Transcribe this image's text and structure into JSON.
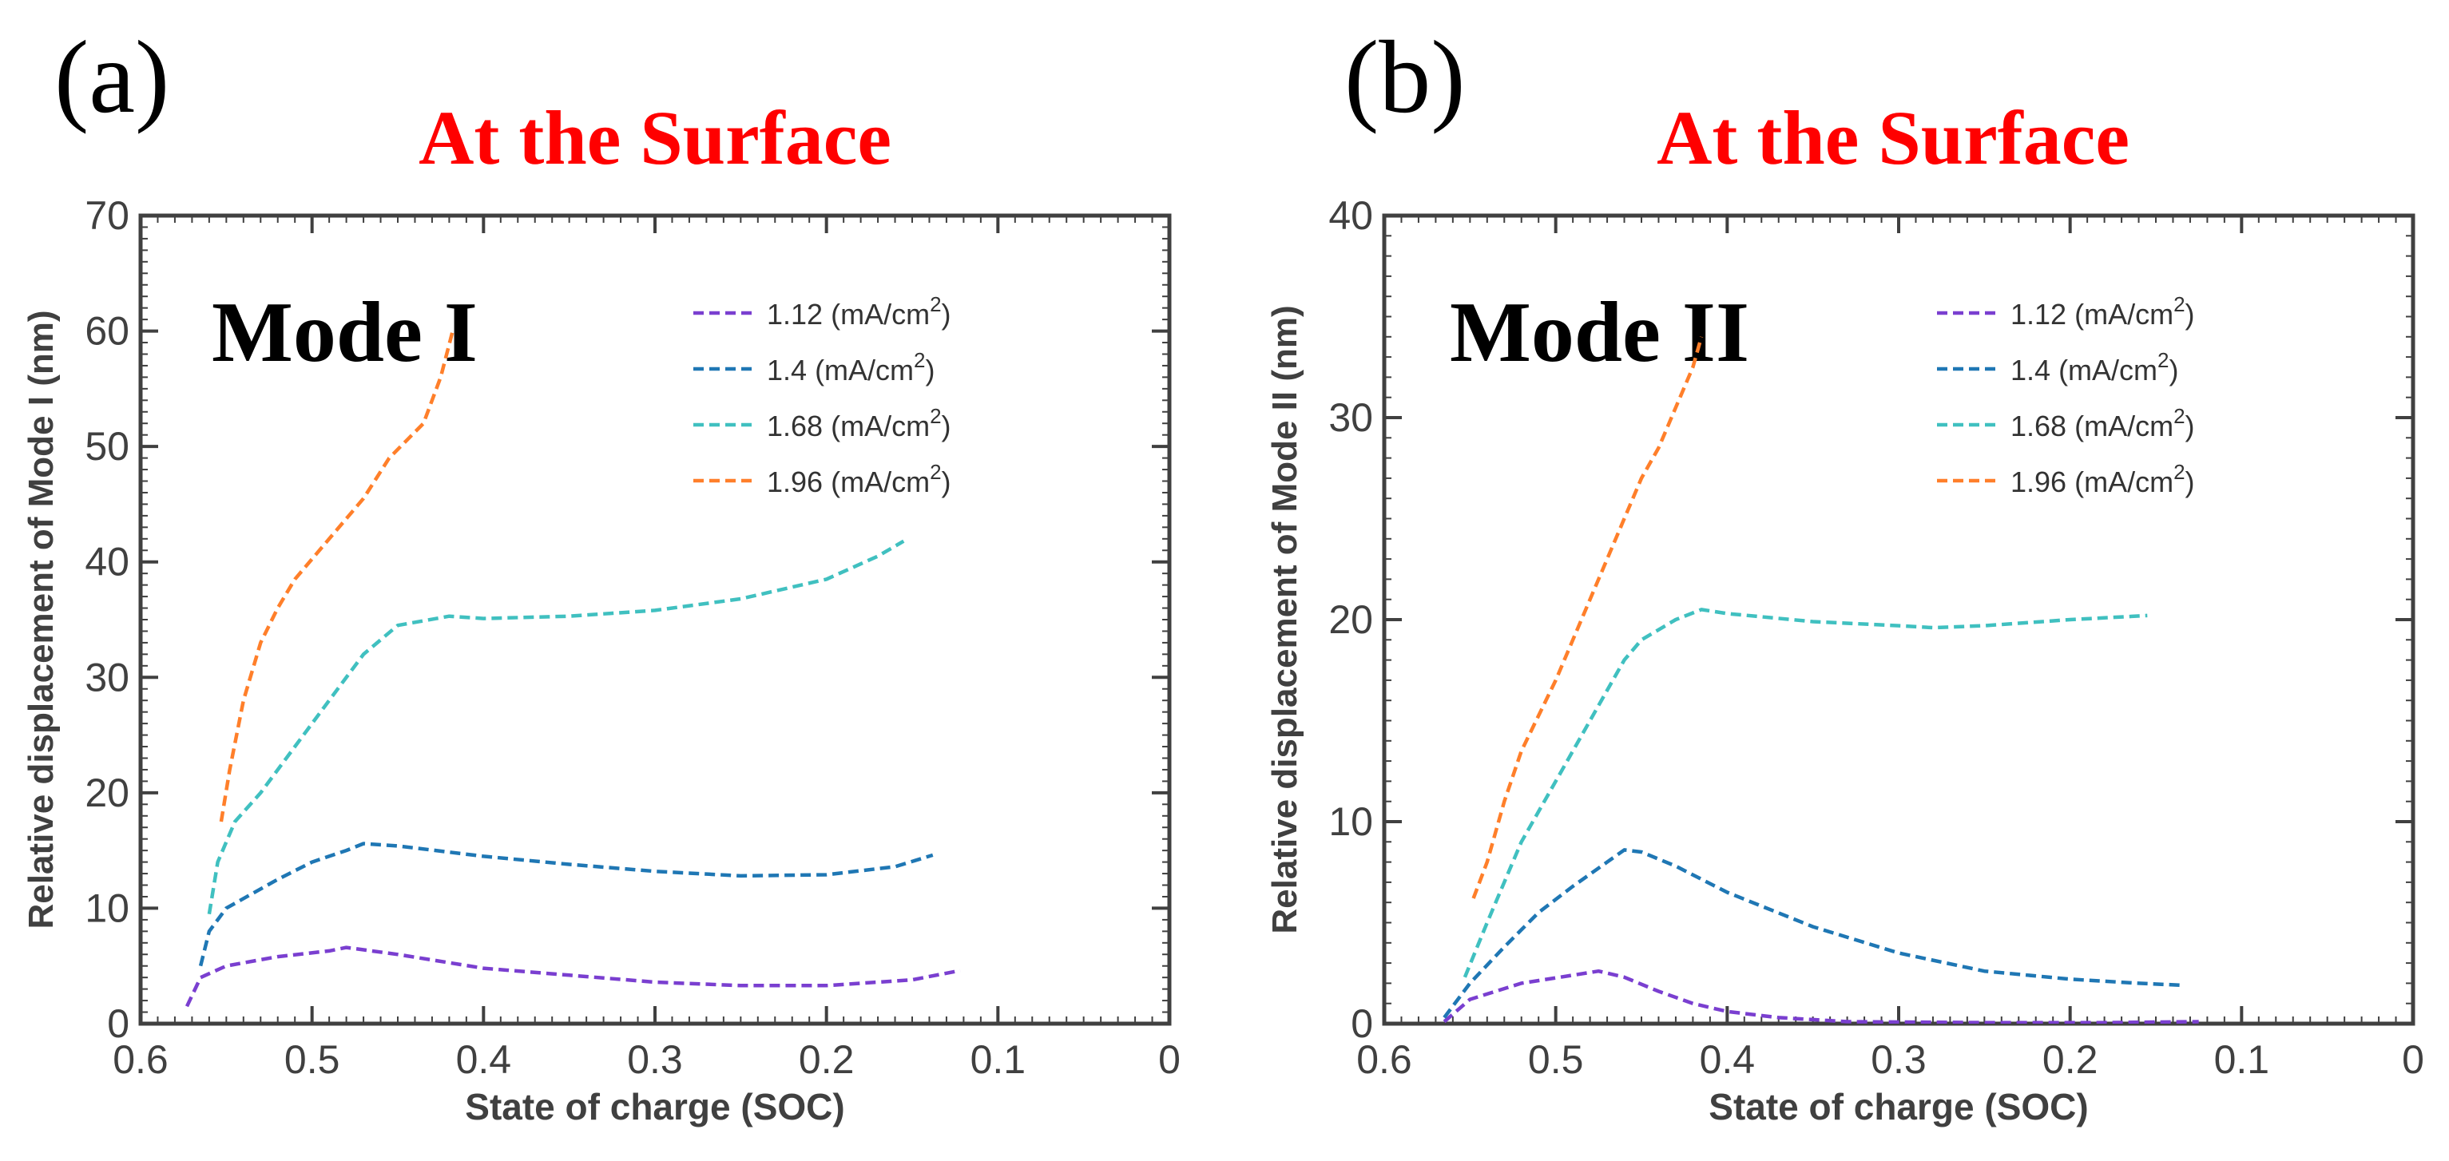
{
  "chart_data": [
    {
      "type": "line",
      "panel": "(a)",
      "title": "At  the Surface",
      "annotation": "Mode I",
      "xlabel": "State of charge (SOC)",
      "ylabel": "Relative displacement of Mode I (nm)",
      "xlim": [
        0.6,
        0
      ],
      "ylim": [
        0,
        70
      ],
      "x_ticks": [
        0.6,
        0.5,
        0.4,
        0.3,
        0.2,
        0.1,
        0
      ],
      "x_tick_labels": [
        "0.6",
        "0.5",
        "0.4",
        "0.3",
        "0.2",
        "0.1",
        "0"
      ],
      "y_ticks": [
        0,
        10,
        20,
        30,
        40,
        50,
        60,
        70
      ],
      "y_tick_labels": [
        "0",
        "10",
        "20",
        "30",
        "40",
        "50",
        "60",
        "70"
      ],
      "legend_position": "top-right",
      "series": [
        {
          "name": "1.12",
          "unit": "(mA/cm",
          "sup": "2",
          "close": ")",
          "color": "#7a3fd0",
          "points": [
            [
              0.573,
              1.5
            ],
            [
              0.565,
              4.0
            ],
            [
              0.55,
              5.0
            ],
            [
              0.52,
              5.8
            ],
            [
              0.49,
              6.3
            ],
            [
              0.48,
              6.6
            ],
            [
              0.45,
              6.0
            ],
            [
              0.4,
              4.8
            ],
            [
              0.35,
              4.2
            ],
            [
              0.3,
              3.6
            ],
            [
              0.25,
              3.3
            ],
            [
              0.2,
              3.3
            ],
            [
              0.15,
              3.8
            ],
            [
              0.122,
              4.6
            ]
          ]
        },
        {
          "name": "1.4",
          "unit": "(mA/cm",
          "sup": "2",
          "close": ")",
          "color": "#1f77b4",
          "points": [
            [
              0.565,
              5.0
            ],
            [
              0.56,
              8.0
            ],
            [
              0.55,
              10.0
            ],
            [
              0.52,
              12.5
            ],
            [
              0.5,
              14.0
            ],
            [
              0.48,
              15.0
            ],
            [
              0.47,
              15.6
            ],
            [
              0.45,
              15.4
            ],
            [
              0.4,
              14.5
            ],
            [
              0.35,
              13.8
            ],
            [
              0.3,
              13.2
            ],
            [
              0.25,
              12.8
            ],
            [
              0.2,
              12.9
            ],
            [
              0.16,
              13.6
            ],
            [
              0.138,
              14.6
            ]
          ]
        },
        {
          "name": "1.68",
          "unit": "(mA/cm",
          "sup": "2",
          "close": ")",
          "color": "#40c0c0",
          "points": [
            [
              0.56,
              9.5
            ],
            [
              0.555,
              14.0
            ],
            [
              0.545,
              17.5
            ],
            [
              0.53,
              20.0
            ],
            [
              0.51,
              24.0
            ],
            [
              0.49,
              28.0
            ],
            [
              0.47,
              32.0
            ],
            [
              0.45,
              34.5
            ],
            [
              0.42,
              35.3
            ],
            [
              0.4,
              35.1
            ],
            [
              0.35,
              35.3
            ],
            [
              0.3,
              35.8
            ],
            [
              0.25,
              36.8
            ],
            [
              0.2,
              38.5
            ],
            [
              0.17,
              40.5
            ],
            [
              0.155,
              41.8
            ]
          ]
        },
        {
          "name": "1.96",
          "unit": "(mA/cm",
          "sup": "2",
          "close": ")",
          "color": "#ff7f2a",
          "points": [
            [
              0.553,
              17.5
            ],
            [
              0.548,
              22.0
            ],
            [
              0.54,
              28.0
            ],
            [
              0.53,
              33.0
            ],
            [
              0.52,
              36.0
            ],
            [
              0.51,
              38.5
            ],
            [
              0.49,
              42.0
            ],
            [
              0.47,
              45.5
            ],
            [
              0.455,
              49.0
            ],
            [
              0.435,
              52.0
            ],
            [
              0.425,
              56.0
            ],
            [
              0.418,
              60.0
            ]
          ]
        }
      ]
    },
    {
      "type": "line",
      "panel": "(b)",
      "title": "At  the Surface",
      "annotation": "Mode II",
      "xlabel": "State of charge (SOC)",
      "ylabel": "Relative displacement of Mode II (nm)",
      "xlim": [
        0.6,
        0
      ],
      "ylim": [
        0,
        40
      ],
      "x_ticks": [
        0.6,
        0.5,
        0.4,
        0.3,
        0.2,
        0.1,
        0
      ],
      "x_tick_labels": [
        "0.6",
        "0.5",
        "0.4",
        "0.3",
        "0.2",
        "0.1",
        "0"
      ],
      "y_ticks": [
        0,
        10,
        20,
        30,
        40
      ],
      "y_tick_labels": [
        "0",
        "10",
        "20",
        "30",
        "40"
      ],
      "legend_position": "top-right",
      "series": [
        {
          "name": "1.12",
          "unit": "(mA/cm",
          "sup": "2",
          "close": ")",
          "color": "#7a3fd0",
          "points": [
            [
              0.565,
              0.1
            ],
            [
              0.55,
              1.2
            ],
            [
              0.52,
              2.0
            ],
            [
              0.49,
              2.4
            ],
            [
              0.475,
              2.6
            ],
            [
              0.46,
              2.3
            ],
            [
              0.44,
              1.6
            ],
            [
              0.42,
              1.0
            ],
            [
              0.4,
              0.6
            ],
            [
              0.37,
              0.3
            ],
            [
              0.33,
              0.1
            ],
            [
              0.25,
              0.05
            ],
            [
              0.18,
              0.05
            ],
            [
              0.125,
              0.1
            ]
          ]
        },
        {
          "name": "1.4",
          "unit": "(mA/cm",
          "sup": "2",
          "close": ")",
          "color": "#1f77b4",
          "points": [
            [
              0.565,
              0.3
            ],
            [
              0.55,
              2.0
            ],
            [
              0.53,
              3.8
            ],
            [
              0.51,
              5.5
            ],
            [
              0.49,
              6.8
            ],
            [
              0.47,
              8.0
            ],
            [
              0.46,
              8.6
            ],
            [
              0.45,
              8.5
            ],
            [
              0.43,
              7.8
            ],
            [
              0.4,
              6.5
            ],
            [
              0.35,
              4.8
            ],
            [
              0.3,
              3.5
            ],
            [
              0.25,
              2.6
            ],
            [
              0.2,
              2.2
            ],
            [
              0.16,
              2.0
            ],
            [
              0.135,
              1.9
            ]
          ]
        },
        {
          "name": "1.68",
          "unit": "(mA/cm",
          "sup": "2",
          "close": ")",
          "color": "#40c0c0",
          "points": [
            [
              0.553,
              2.3
            ],
            [
              0.54,
              5.0
            ],
            [
              0.52,
              9.0
            ],
            [
              0.5,
              12.0
            ],
            [
              0.48,
              15.0
            ],
            [
              0.46,
              18.0
            ],
            [
              0.45,
              19.0
            ],
            [
              0.43,
              20.0
            ],
            [
              0.415,
              20.5
            ],
            [
              0.4,
              20.3
            ],
            [
              0.35,
              19.9
            ],
            [
              0.3,
              19.7
            ],
            [
              0.28,
              19.6
            ],
            [
              0.25,
              19.7
            ],
            [
              0.2,
              20.0
            ],
            [
              0.155,
              20.2
            ]
          ]
        },
        {
          "name": "1.96",
          "unit": "(mA/cm",
          "sup": "2",
          "close": ")",
          "color": "#ff7f2a",
          "points": [
            [
              0.548,
              6.2
            ],
            [
              0.54,
              8.0
            ],
            [
              0.53,
              11.0
            ],
            [
              0.52,
              13.5
            ],
            [
              0.5,
              17.0
            ],
            [
              0.48,
              21.0
            ],
            [
              0.46,
              25.0
            ],
            [
              0.45,
              27.0
            ],
            [
              0.44,
              28.5
            ],
            [
              0.43,
              30.5
            ],
            [
              0.42,
              32.5
            ],
            [
              0.415,
              34.0
            ]
          ]
        }
      ]
    }
  ]
}
